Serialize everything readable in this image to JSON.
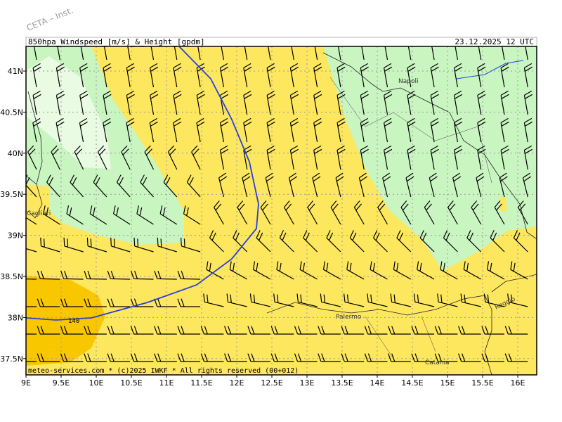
{
  "watermark": "CETA – Inst.",
  "header": {
    "title": "850hpa_Windspeed_[m/s]_&_Height_[gpdm]",
    "datetime": "23.12.2025 12 UTC"
  },
  "lon_labels": [
    "9E",
    "9.5E",
    "10E",
    "10.5E",
    "11E",
    "11.5E",
    "12E",
    "12.5E",
    "13E",
    "13.5E",
    "14E",
    "14.5E",
    "15E",
    "15.5E",
    "16E"
  ],
  "lat_labels": [
    "41N",
    "40.5N",
    "40N",
    "39.5N",
    "39N",
    "38.5N",
    "38N",
    "37.5N"
  ],
  "places": {
    "napoli": "Napoli",
    "cagliari": "Cagliari",
    "palermo": "Palermo",
    "reggio": "Reggio",
    "catania": "Catania"
  },
  "contour_label": "140",
  "footer": "meteo-services.com * (c)2025 IWKF * All rights reserved (00+012)"
}
